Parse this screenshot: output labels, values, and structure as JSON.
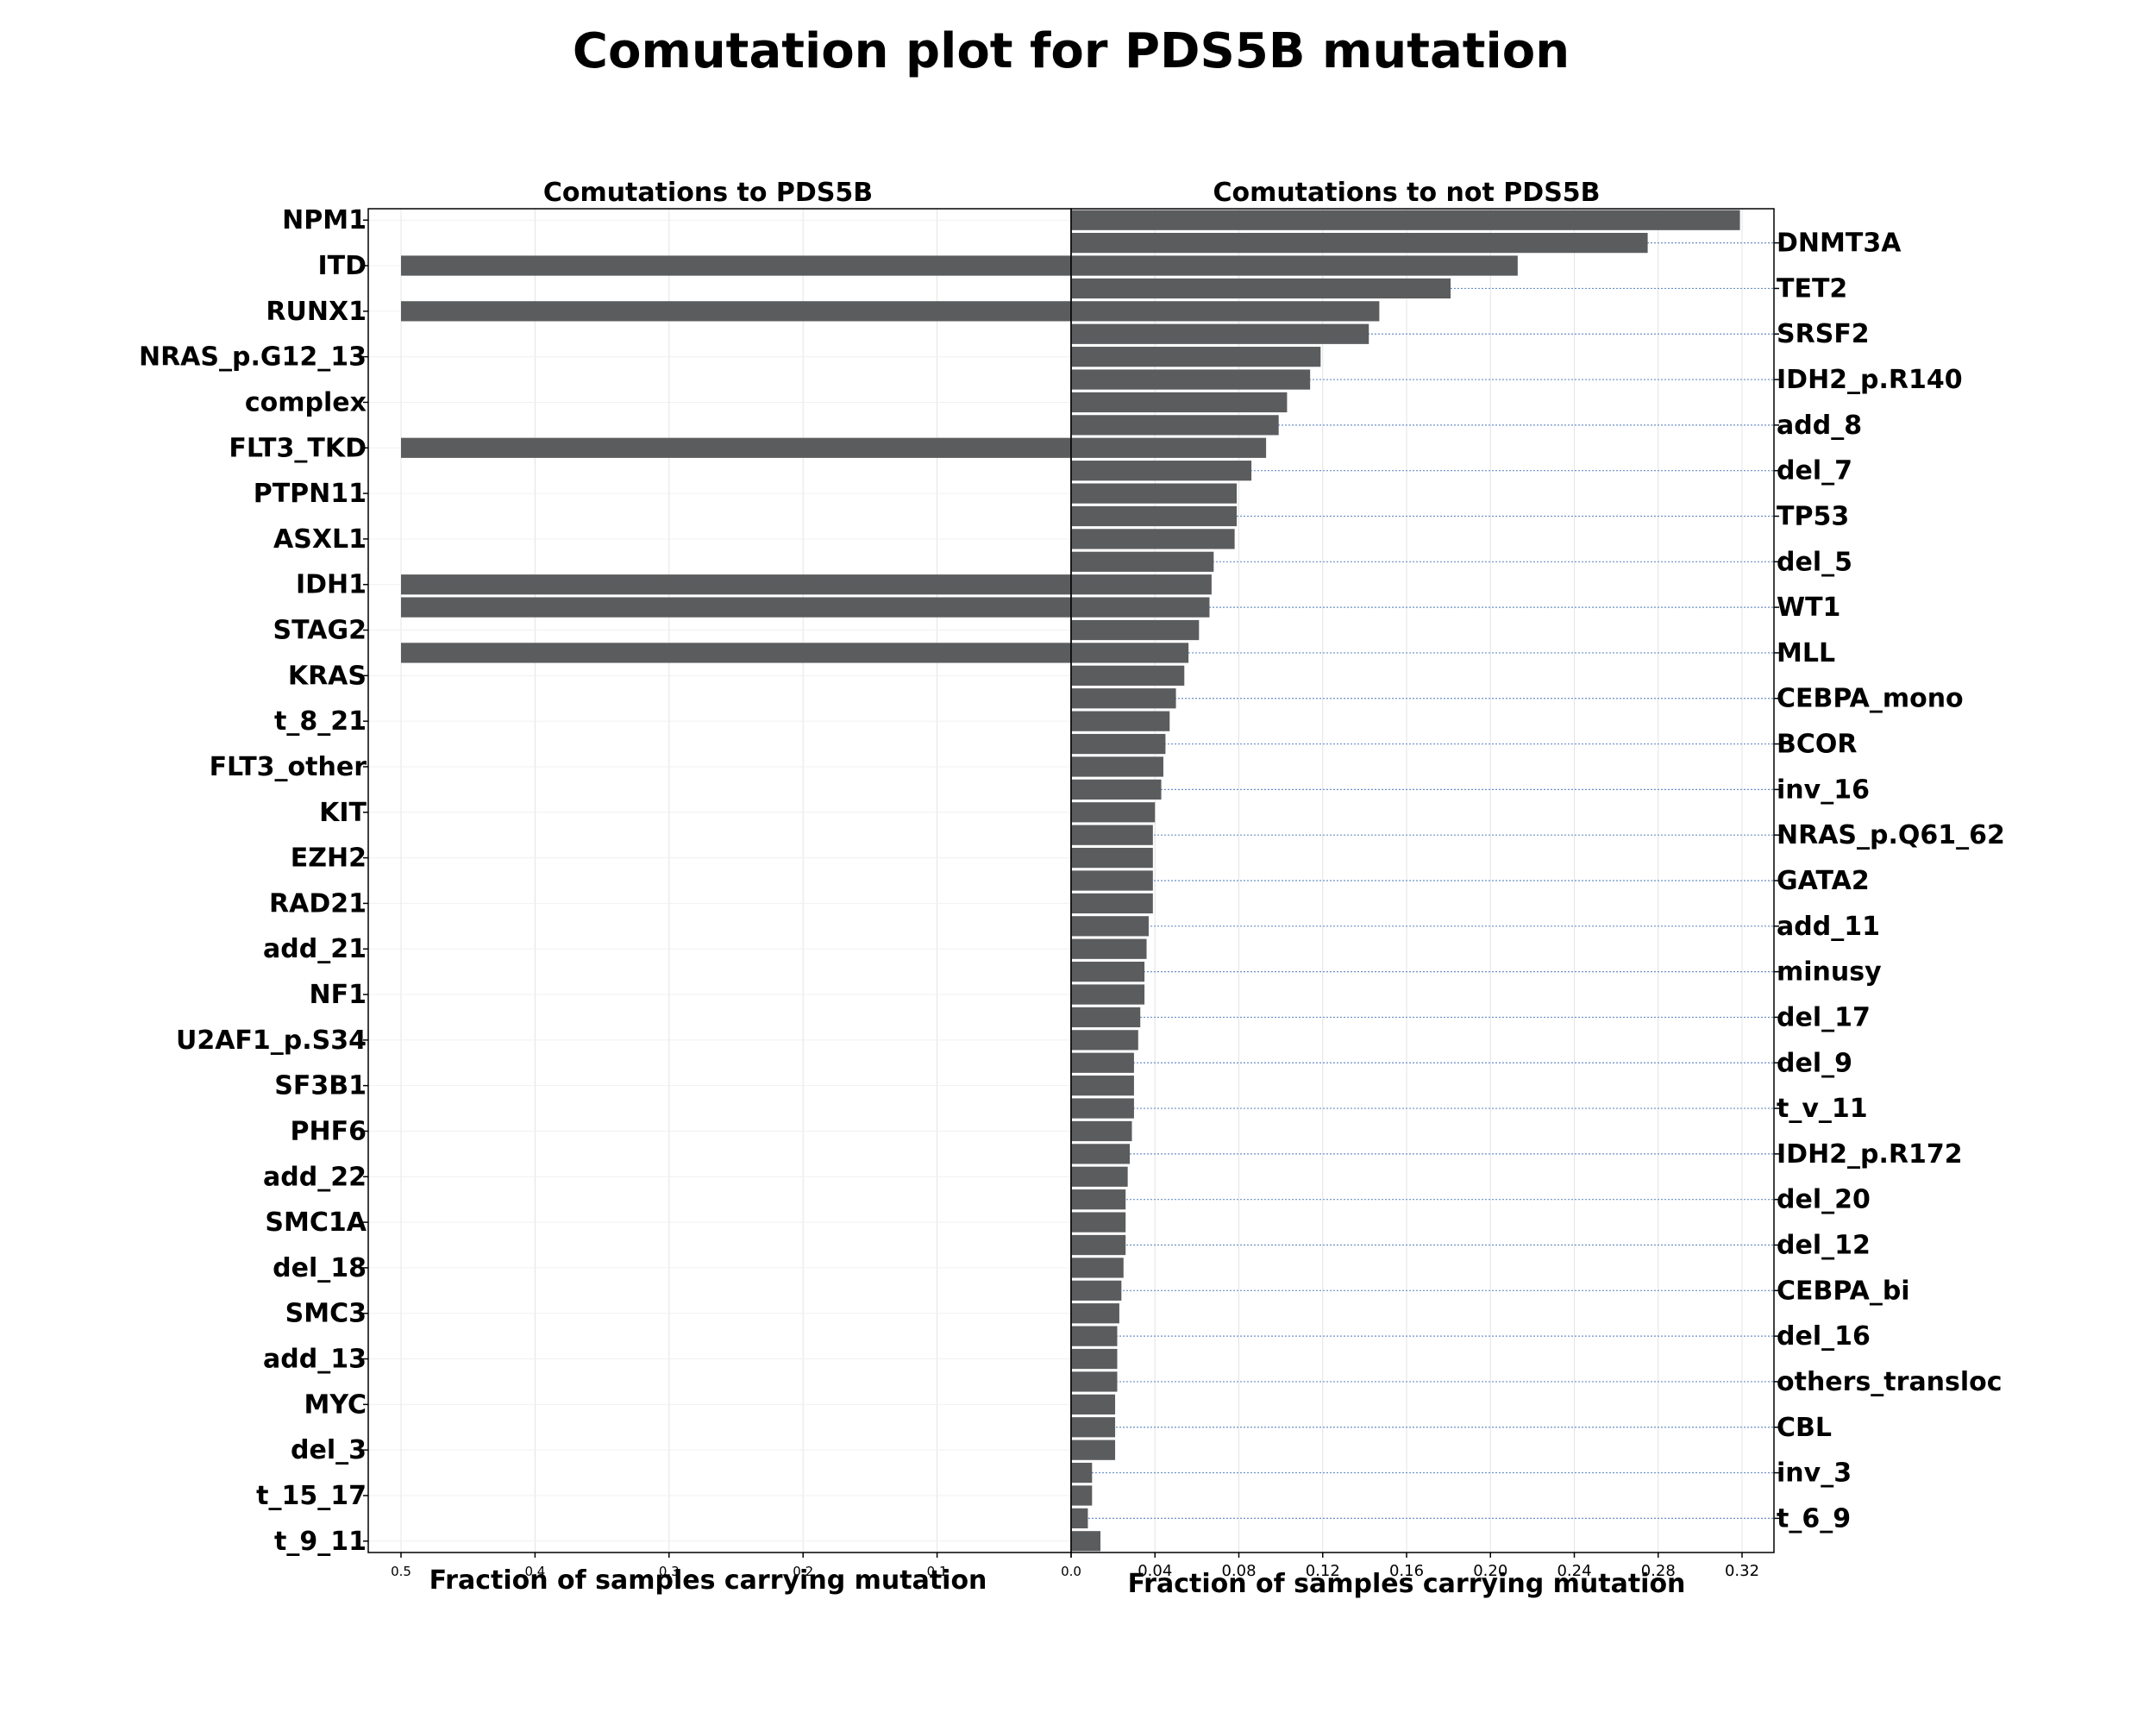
{
  "chart_data": {
    "type": "bar",
    "title": "Comutation plot for PDS5B mutation",
    "left_panel": {
      "title": "Comutations to PDS5B",
      "xlabel": "Fraction of samples carrying mutation",
      "xlim": [
        0.5,
        0.0
      ],
      "xticks": [
        "0.5",
        "0.4",
        "0.3",
        "0.2",
        "0.1",
        "0.0"
      ],
      "tick_values": [
        0.5,
        0.4,
        0.3,
        0.2,
        0.1,
        0.0
      ],
      "labels": [
        "NPM1",
        "ITD",
        "RUNX1",
        "NRAS_p.G12_13",
        "complex",
        "FLT3_TKD",
        "PTPN11",
        "ASXL1",
        "IDH1",
        "STAG2",
        "KRAS",
        "t_8_21",
        "FLT3_other",
        "KIT",
        "EZH2",
        "RAD21",
        "add_21",
        "NF1",
        "U2AF1_p.S34",
        "SF3B1",
        "PHF6",
        "add_22",
        "SMC1A",
        "del_18",
        "SMC3",
        "add_13",
        "MYC",
        "del_3",
        "t_15_17",
        "t_9_11"
      ]
    },
    "right_panel": {
      "title": "Comutations to not PDS5B",
      "xlabel": "Fraction of samples carrying mutation",
      "xlim": [
        0.0,
        0.335
      ],
      "xticks": [
        "0.0",
        "0.04",
        "0.08",
        "0.12",
        "0.16",
        "0.20",
        "0.24",
        "0.28",
        "0.32"
      ],
      "tick_values": [
        0.0,
        0.04,
        0.08,
        0.12,
        0.16,
        0.2,
        0.24,
        0.28,
        0.32
      ],
      "labels": [
        "DNMT3A",
        "TET2",
        "SRSF2",
        "IDH2_p.R140",
        "add_8",
        "del_7",
        "TP53",
        "del_5",
        "WT1",
        "MLL",
        "CEBPA_mono",
        "BCOR",
        "inv_16",
        "NRAS_p.Q61_62",
        "GATA2",
        "add_11",
        "minusy",
        "del_17",
        "del_9",
        "t_v_11",
        "IDH2_p.R172",
        "del_20",
        "del_12",
        "CEBPA_bi",
        "del_16",
        "others_transloc",
        "CBL",
        "inv_3",
        "t_6_9"
      ]
    },
    "categories": [
      "NPM1",
      "DNMT3A",
      "ITD",
      "TET2",
      "RUNX1",
      "SRSF2",
      "NRAS_p.G12_13",
      "IDH2_p.R140",
      "complex",
      "add_8",
      "FLT3_TKD",
      "del_7",
      "PTPN11",
      "TP53",
      "ASXL1",
      "del_5",
      "IDH1",
      "WT1",
      "STAG2",
      "MLL",
      "KRAS",
      "CEBPA_mono",
      "t_8_21",
      "BCOR",
      "FLT3_other",
      "inv_16",
      "KIT",
      "NRAS_p.Q61_62",
      "EZH2",
      "GATA2",
      "RAD21",
      "add_11",
      "add_21",
      "minusy",
      "NF1",
      "del_17",
      "U2AF1_p.S34",
      "del_9",
      "SF3B1",
      "t_v_11",
      "PHF6",
      "IDH2_p.R172",
      "add_22",
      "del_20",
      "SMC1A",
      "del_12",
      "del_18",
      "CEBPA_bi",
      "SMC3",
      "del_16",
      "add_13",
      "others_transloc",
      "MYC",
      "CBL",
      "del_3",
      "inv_3",
      "t_15_17",
      "t_6_9",
      "t_9_11"
    ],
    "series": [
      {
        "values": [
          0,
          0,
          0.5,
          0,
          0.5,
          0,
          0,
          0,
          0,
          0,
          0.5,
          0,
          0,
          0,
          0,
          0,
          0.5,
          0.5,
          0,
          0.5,
          0,
          0,
          0,
          0,
          0,
          0,
          0,
          0,
          0,
          0,
          0,
          0,
          0,
          0,
          0,
          0,
          0,
          0,
          0,
          0,
          0,
          0,
          0,
          0,
          0,
          0,
          0,
          0,
          0,
          0,
          0,
          0,
          0,
          0,
          0,
          0,
          0,
          0,
          0
        ]
      },
      {
        "values": [
          0.319,
          0.275,
          0.213,
          0.181,
          0.147,
          0.142,
          0.119,
          0.114,
          0.103,
          0.099,
          0.093,
          0.086,
          0.079,
          0.079,
          0.078,
          0.068,
          0.067,
          0.066,
          0.061,
          0.056,
          0.054,
          0.05,
          0.047,
          0.045,
          0.044,
          0.043,
          0.04,
          0.039,
          0.039,
          0.039,
          0.039,
          0.037,
          0.036,
          0.035,
          0.035,
          0.033,
          0.032,
          0.03,
          0.03,
          0.03,
          0.029,
          0.028,
          0.027,
          0.026,
          0.026,
          0.026,
          0.025,
          0.024,
          0.023,
          0.022,
          0.022,
          0.022,
          0.021,
          0.021,
          0.021,
          0.01,
          0.01,
          0.008,
          0.014
        ]
      }
    ],
    "grid": true,
    "colors": {
      "bar": "#5b5c5e",
      "guide_line": "#6a8fc8",
      "grid": "#e4e4e4"
    }
  }
}
